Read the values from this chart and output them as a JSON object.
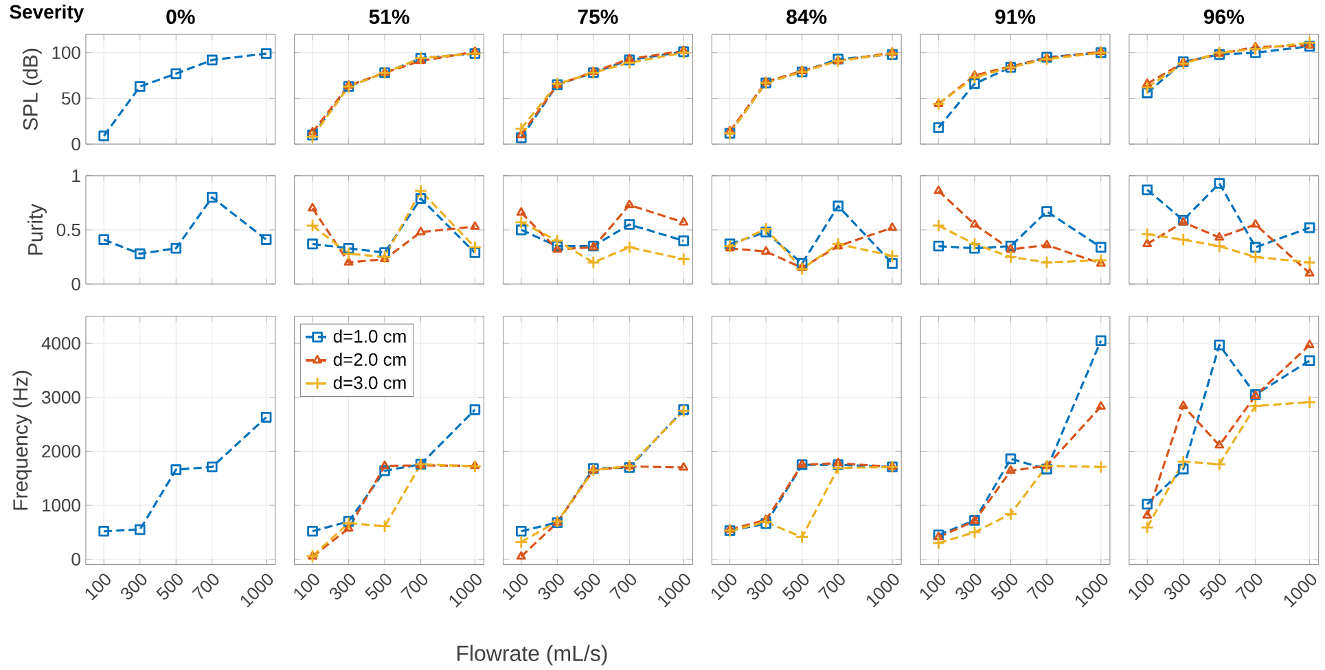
{
  "chart_data": [
    {
      "type": "line",
      "title": "0%",
      "ylabel": "SPL (dB)",
      "annotations": [
        "Severity"
      ],
      "x": [
        100,
        300,
        500,
        700,
        1000
      ],
      "xlim": [
        0,
        1050
      ],
      "ylim": [
        0,
        120
      ],
      "xticks": [
        100,
        300,
        500,
        700,
        1000
      ],
      "yticks": [
        0,
        50,
        100
      ],
      "grid": true,
      "line_style": "dashed",
      "tick_labels": "y",
      "series": [
        {
          "color": "#0072bd",
          "marker": "square",
          "values": [
            9,
            63,
            77,
            92,
            99
          ]
        }
      ]
    },
    {
      "type": "line",
      "title": "51%",
      "x": [
        100,
        300,
        500,
        700,
        1000
      ],
      "xlim": [
        0,
        1050
      ],
      "ylim": [
        0,
        120
      ],
      "xticks": [
        100,
        300,
        500,
        700,
        1000
      ],
      "yticks": [
        0,
        50,
        100
      ],
      "grid": true,
      "line_style": "dashed",
      "tick_labels": false,
      "series": [
        {
          "color": "#0072bd",
          "marker": "square",
          "values": [
            10,
            63,
            78,
            94,
            99
          ]
        },
        {
          "color": "#d95319",
          "marker": "triangle",
          "values": [
            13,
            64,
            78,
            91,
            101
          ]
        },
        {
          "color": "#edb120",
          "marker": "cross",
          "values": [
            8,
            63,
            78,
            94,
            99
          ]
        }
      ]
    },
    {
      "type": "line",
      "title": "75%",
      "x": [
        100,
        300,
        500,
        700,
        1000
      ],
      "xlim": [
        0,
        1050
      ],
      "ylim": [
        0,
        120
      ],
      "xticks": [
        100,
        300,
        500,
        700,
        1000
      ],
      "yticks": [
        0,
        50,
        100
      ],
      "grid": true,
      "line_style": "dashed",
      "tick_labels": false,
      "series": [
        {
          "color": "#0072bd",
          "marker": "square",
          "values": [
            7,
            65,
            78,
            92,
            101
          ]
        },
        {
          "color": "#d95319",
          "marker": "triangle",
          "values": [
            10,
            65,
            79,
            93,
            102
          ]
        },
        {
          "color": "#edb120",
          "marker": "cross",
          "values": [
            17,
            66,
            78,
            89,
            100
          ]
        }
      ]
    },
    {
      "type": "line",
      "title": "84%",
      "x": [
        100,
        300,
        500,
        700,
        1000
      ],
      "xlim": [
        0,
        1050
      ],
      "ylim": [
        0,
        120
      ],
      "xticks": [
        100,
        300,
        500,
        700,
        1000
      ],
      "yticks": [
        0,
        50,
        100
      ],
      "grid": true,
      "line_style": "dashed",
      "tick_labels": false,
      "series": [
        {
          "color": "#0072bd",
          "marker": "square",
          "values": [
            12,
            67,
            79,
            93,
            98
          ]
        },
        {
          "color": "#d95319",
          "marker": "triangle",
          "values": [
            14,
            68,
            80,
            91,
            100
          ]
        },
        {
          "color": "#edb120",
          "marker": "cross",
          "values": [
            12,
            67,
            79,
            91,
            99
          ]
        }
      ]
    },
    {
      "type": "line",
      "title": "91%",
      "x": [
        100,
        300,
        500,
        700,
        1000
      ],
      "xlim": [
        0,
        1050
      ],
      "ylim": [
        0,
        120
      ],
      "xticks": [
        100,
        300,
        500,
        700,
        1000
      ],
      "yticks": [
        0,
        50,
        100
      ],
      "grid": true,
      "line_style": "dashed",
      "tick_labels": false,
      "series": [
        {
          "color": "#0072bd",
          "marker": "square",
          "values": [
            18,
            66,
            84,
            95,
            100
          ]
        },
        {
          "color": "#d95319",
          "marker": "triangle",
          "values": [
            44,
            75,
            85,
            94,
            101
          ]
        },
        {
          "color": "#edb120",
          "marker": "cross",
          "values": [
            44,
            73,
            84,
            93,
            100
          ]
        }
      ]
    },
    {
      "type": "line",
      "title": "96%",
      "x": [
        100,
        300,
        500,
        700,
        1000
      ],
      "xlim": [
        0,
        1050
      ],
      "ylim": [
        0,
        120
      ],
      "xticks": [
        100,
        300,
        500,
        700,
        1000
      ],
      "yticks": [
        0,
        50,
        100
      ],
      "grid": true,
      "line_style": "dashed",
      "tick_labels": false,
      "series": [
        {
          "color": "#0072bd",
          "marker": "square",
          "values": [
            56,
            90,
            98,
            100,
            107
          ]
        },
        {
          "color": "#d95319",
          "marker": "triangle",
          "values": [
            66,
            89,
            99,
            106,
            108
          ]
        },
        {
          "color": "#edb120",
          "marker": "cross",
          "values": [
            62,
            88,
            100,
            104,
            111
          ]
        }
      ]
    },
    {
      "type": "line",
      "ylabel": "Purity",
      "x": [
        100,
        300,
        500,
        700,
        1000
      ],
      "xlim": [
        0,
        1050
      ],
      "ylim": [
        0,
        1
      ],
      "xticks": [
        100,
        300,
        500,
        700,
        1000
      ],
      "yticks": [
        0,
        0.5,
        1
      ],
      "grid": true,
      "line_style": "dashed",
      "tick_labels": "y",
      "series": [
        {
          "color": "#0072bd",
          "marker": "square",
          "values": [
            0.41,
            0.28,
            0.33,
            0.8,
            0.41
          ]
        }
      ]
    },
    {
      "type": "line",
      "x": [
        100,
        300,
        500,
        700,
        1000
      ],
      "xlim": [
        0,
        1050
      ],
      "ylim": [
        0,
        1
      ],
      "xticks": [
        100,
        300,
        500,
        700,
        1000
      ],
      "yticks": [
        0,
        0.5,
        1
      ],
      "grid": true,
      "line_style": "dashed",
      "tick_labels": false,
      "series": [
        {
          "color": "#0072bd",
          "marker": "square",
          "values": [
            0.37,
            0.33,
            0.29,
            0.79,
            0.29
          ]
        },
        {
          "color": "#d95319",
          "marker": "triangle",
          "values": [
            0.7,
            0.2,
            0.23,
            0.48,
            0.53
          ]
        },
        {
          "color": "#edb120",
          "marker": "cross",
          "values": [
            0.54,
            0.28,
            0.25,
            0.86,
            0.34
          ]
        }
      ]
    },
    {
      "type": "line",
      "x": [
        100,
        300,
        500,
        700,
        1000
      ],
      "xlim": [
        0,
        1050
      ],
      "ylim": [
        0,
        1
      ],
      "xticks": [
        100,
        300,
        500,
        700,
        1000
      ],
      "yticks": [
        0,
        0.5,
        1
      ],
      "grid": true,
      "line_style": "dashed",
      "tick_labels": false,
      "series": [
        {
          "color": "#0072bd",
          "marker": "square",
          "values": [
            0.5,
            0.35,
            0.35,
            0.55,
            0.4
          ]
        },
        {
          "color": "#d95319",
          "marker": "triangle",
          "values": [
            0.66,
            0.32,
            0.34,
            0.73,
            0.57
          ]
        },
        {
          "color": "#edb120",
          "marker": "cross",
          "values": [
            0.57,
            0.4,
            0.2,
            0.34,
            0.23
          ]
        }
      ]
    },
    {
      "type": "line",
      "x": [
        100,
        300,
        500,
        700,
        1000
      ],
      "xlim": [
        0,
        1050
      ],
      "ylim": [
        0,
        1
      ],
      "xticks": [
        100,
        300,
        500,
        700,
        1000
      ],
      "yticks": [
        0,
        0.5,
        1
      ],
      "grid": true,
      "line_style": "dashed",
      "tick_labels": false,
      "series": [
        {
          "color": "#0072bd",
          "marker": "square",
          "values": [
            0.37,
            0.48,
            0.19,
            0.72,
            0.19
          ]
        },
        {
          "color": "#d95319",
          "marker": "triangle",
          "values": [
            0.33,
            0.3,
            0.15,
            0.35,
            0.52
          ]
        },
        {
          "color": "#edb120",
          "marker": "cross",
          "values": [
            0.35,
            0.51,
            0.14,
            0.37,
            0.26
          ]
        }
      ]
    },
    {
      "type": "line",
      "x": [
        100,
        300,
        500,
        700,
        1000
      ],
      "xlim": [
        0,
        1050
      ],
      "ylim": [
        0,
        1
      ],
      "xticks": [
        100,
        300,
        500,
        700,
        1000
      ],
      "yticks": [
        0,
        0.5,
        1
      ],
      "grid": true,
      "line_style": "dashed",
      "tick_labels": false,
      "series": [
        {
          "color": "#0072bd",
          "marker": "square",
          "values": [
            0.35,
            0.33,
            0.35,
            0.67,
            0.34
          ]
        },
        {
          "color": "#d95319",
          "marker": "triangle",
          "values": [
            0.86,
            0.55,
            0.32,
            0.36,
            0.19
          ]
        },
        {
          "color": "#edb120",
          "marker": "cross",
          "values": [
            0.54,
            0.37,
            0.25,
            0.2,
            0.22
          ]
        }
      ]
    },
    {
      "type": "line",
      "x": [
        100,
        300,
        500,
        700,
        1000
      ],
      "xlim": [
        0,
        1050
      ],
      "ylim": [
        0,
        1
      ],
      "xticks": [
        100,
        300,
        500,
        700,
        1000
      ],
      "yticks": [
        0,
        0.5,
        1
      ],
      "grid": true,
      "line_style": "dashed",
      "tick_labels": false,
      "series": [
        {
          "color": "#0072bd",
          "marker": "square",
          "values": [
            0.87,
            0.59,
            0.93,
            0.34,
            0.52
          ]
        },
        {
          "color": "#d95319",
          "marker": "triangle",
          "values": [
            0.37,
            0.57,
            0.43,
            0.55,
            0.1
          ]
        },
        {
          "color": "#edb120",
          "marker": "cross",
          "values": [
            0.46,
            0.41,
            0.35,
            0.25,
            0.2
          ]
        }
      ]
    },
    {
      "type": "line",
      "ylabel": "Frequency (Hz)",
      "x": [
        100,
        300,
        500,
        700,
        1000
      ],
      "xlim": [
        0,
        1050
      ],
      "ylim": [
        -100,
        4500
      ],
      "xticks": [
        100,
        300,
        500,
        700,
        1000
      ],
      "yticks": [
        0,
        1000,
        2000,
        3000,
        4000
      ],
      "grid": true,
      "line_style": "dashed",
      "series": [
        {
          "color": "#0072bd",
          "marker": "square",
          "values": [
            520,
            550,
            1660,
            1710,
            2630
          ]
        }
      ]
    },
    {
      "type": "line",
      "legend": "top left",
      "x": [
        100,
        300,
        500,
        700,
        1000
      ],
      "xlim": [
        0,
        1050
      ],
      "ylim": [
        -100,
        4500
      ],
      "xticks": [
        100,
        300,
        500,
        700,
        1000
      ],
      "yticks": [
        0,
        1000,
        2000,
        3000,
        4000
      ],
      "grid": true,
      "line_style": "dashed",
      "tick_labels": "x",
      "series": [
        {
          "name": "d=1.0 cm",
          "color": "#0072bd",
          "marker": "square",
          "values": [
            520,
            700,
            1640,
            1760,
            2770
          ]
        },
        {
          "name": "d=2.0 cm",
          "color": "#d95319",
          "marker": "triangle",
          "values": [
            50,
            570,
            1730,
            1740,
            1730
          ]
        },
        {
          "name": "d=3.0 cm",
          "color": "#edb120",
          "marker": "cross",
          "values": [
            60,
            670,
            610,
            1760,
            1720
          ]
        }
      ]
    },
    {
      "type": "line",
      "xlabel": "Flowrate (mL/s)",
      "x": [
        100,
        300,
        500,
        700,
        1000
      ],
      "xlim": [
        0,
        1050
      ],
      "ylim": [
        -100,
        4500
      ],
      "xticks": [
        100,
        300,
        500,
        700,
        1000
      ],
      "yticks": [
        0,
        1000,
        2000,
        3000,
        4000
      ],
      "grid": true,
      "line_style": "dashed",
      "tick_labels": "x",
      "series": [
        {
          "color": "#0072bd",
          "marker": "square",
          "values": [
            520,
            680,
            1680,
            1700,
            2770
          ]
        },
        {
          "color": "#d95319",
          "marker": "triangle",
          "values": [
            50,
            680,
            1650,
            1720,
            1700
          ]
        },
        {
          "color": "#edb120",
          "marker": "cross",
          "values": [
            320,
            700,
            1650,
            1730,
            2750
          ]
        }
      ]
    },
    {
      "type": "line",
      "x": [
        100,
        300,
        500,
        700,
        1000
      ],
      "xlim": [
        0,
        1050
      ],
      "ylim": [
        -100,
        4500
      ],
      "xticks": [
        100,
        300,
        500,
        700,
        1000
      ],
      "yticks": [
        0,
        1000,
        2000,
        3000,
        4000
      ],
      "grid": true,
      "line_style": "dashed",
      "tick_labels": "x",
      "series": [
        {
          "color": "#0072bd",
          "marker": "square",
          "values": [
            530,
            660,
            1750,
            1750,
            1710
          ]
        },
        {
          "color": "#d95319",
          "marker": "triangle",
          "values": [
            550,
            730,
            1750,
            1780,
            1710
          ]
        },
        {
          "color": "#edb120",
          "marker": "cross",
          "values": [
            530,
            690,
            410,
            1690,
            1710
          ]
        }
      ]
    },
    {
      "type": "line",
      "x": [
        100,
        300,
        500,
        700,
        1000
      ],
      "xlim": [
        0,
        1050
      ],
      "ylim": [
        -100,
        4500
      ],
      "xticks": [
        100,
        300,
        500,
        700,
        1000
      ],
      "yticks": [
        0,
        1000,
        2000,
        3000,
        4000
      ],
      "grid": true,
      "line_style": "dashed",
      "tick_labels": "x",
      "series": [
        {
          "color": "#0072bd",
          "marker": "square",
          "values": [
            450,
            720,
            1860,
            1670,
            4050
          ]
        },
        {
          "color": "#d95319",
          "marker": "triangle",
          "values": [
            410,
            710,
            1640,
            1730,
            2830
          ]
        },
        {
          "color": "#edb120",
          "marker": "cross",
          "values": [
            300,
            500,
            840,
            1730,
            1710
          ]
        }
      ]
    },
    {
      "type": "line",
      "x": [
        100,
        300,
        500,
        700,
        1000
      ],
      "xlim": [
        0,
        1050
      ],
      "ylim": [
        -100,
        4500
      ],
      "xticks": [
        100,
        300,
        500,
        700,
        1000
      ],
      "yticks": [
        0,
        1000,
        2000,
        3000,
        4000
      ],
      "grid": true,
      "line_style": "dashed",
      "tick_labels": "x",
      "series": [
        {
          "color": "#0072bd",
          "marker": "square",
          "values": [
            1020,
            1670,
            3970,
            3050,
            3680
          ]
        },
        {
          "color": "#d95319",
          "marker": "triangle",
          "values": [
            810,
            2840,
            2110,
            3030,
            3970
          ]
        },
        {
          "color": "#edb120",
          "marker": "cross",
          "values": [
            590,
            1810,
            1760,
            2840,
            2910
          ]
        }
      ]
    }
  ]
}
